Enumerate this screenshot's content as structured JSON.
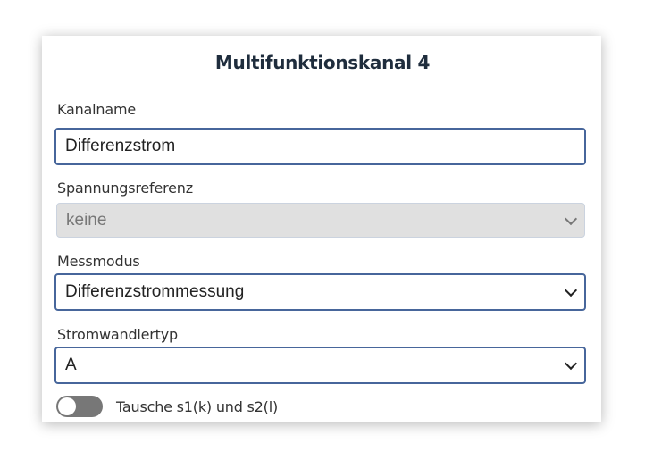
{
  "title": "Multifunktionskanal 4",
  "kanalname": {
    "label": "Kanalname",
    "value": "Differenzstrom"
  },
  "spannungsreferenz": {
    "label": "Spannungsreferenz",
    "value": "keine",
    "disabled": true
  },
  "messmodus": {
    "label": "Messmodus",
    "value": "Differenzstrommessung"
  },
  "stromwandlertyp": {
    "label": "Stromwandlertyp",
    "value": "A"
  },
  "swap_toggle": {
    "label": "Tausche s1(k) und s2(l)",
    "on": false
  },
  "colors": {
    "border_active": "#47669b",
    "disabled_bg": "#e0e0e0",
    "toggle_off": "#777777"
  }
}
